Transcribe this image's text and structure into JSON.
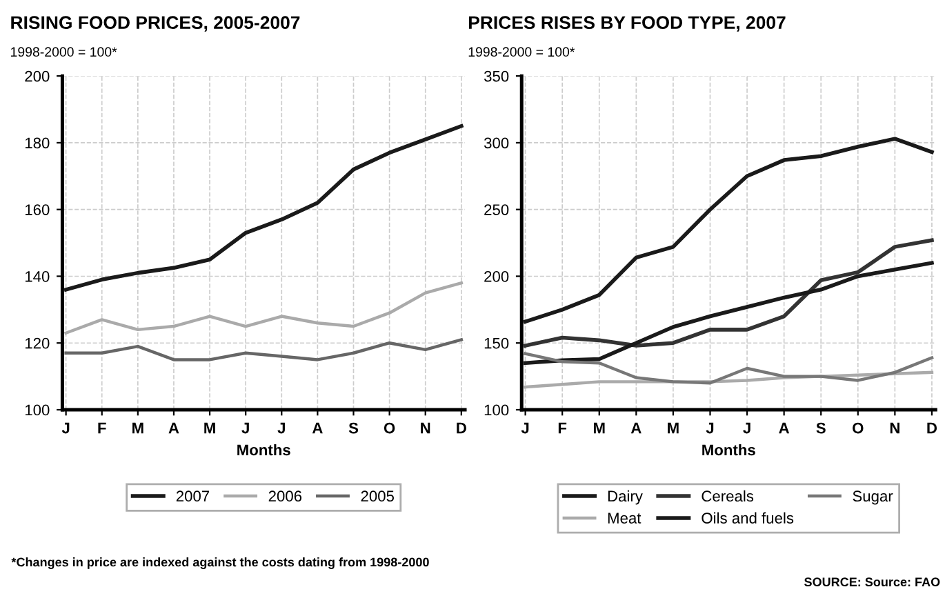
{
  "chart_data": [
    {
      "type": "line",
      "title": "RISING FOOD PRICES, 2005-2007",
      "subtitle": "1998-2000 = 100*",
      "xlabel": "Months",
      "categories": [
        "J",
        "F",
        "M",
        "A",
        "M",
        "J",
        "J",
        "A",
        "S",
        "O",
        "N",
        "D"
      ],
      "ylim": [
        100,
        200
      ],
      "yticks": [
        100,
        120,
        140,
        160,
        180,
        200
      ],
      "grid": true,
      "legend": "bottom",
      "marker": "none",
      "line_style": "solid",
      "series": [
        {
          "name": "2007",
          "color": "#1a1a1a",
          "values": [
            136,
            139,
            141,
            142.5,
            145,
            153,
            157,
            162,
            172,
            177,
            181,
            185
          ]
        },
        {
          "name": "2006",
          "color": "#aaaaaa",
          "values": [
            123,
            127,
            124,
            125,
            128,
            125,
            128,
            126,
            125,
            129,
            135,
            138
          ]
        },
        {
          "name": "2005",
          "color": "#666666",
          "values": [
            117,
            117,
            119,
            115,
            115,
            117,
            116,
            115,
            117,
            120,
            118,
            121
          ]
        }
      ],
      "annotations": [
        "*Changes in price are indexed against the costs dating from 1998-2000"
      ]
    },
    {
      "type": "line",
      "title": "PRICES RISES BY FOOD TYPE, 2007",
      "subtitle": "1998-2000 = 100*",
      "xlabel": "Months",
      "categories": [
        "J",
        "F",
        "M",
        "A",
        "M",
        "J",
        "J",
        "A",
        "S",
        "O",
        "N",
        "D"
      ],
      "ylim": [
        100,
        350
      ],
      "yticks": [
        100,
        150,
        200,
        250,
        300,
        350
      ],
      "grid": true,
      "legend": "bottom",
      "marker": "none",
      "line_style": "solid",
      "series": [
        {
          "name": "Dairy",
          "color": "#1a1a1a",
          "values": [
            166,
            175,
            186,
            214,
            222,
            250,
            275,
            287,
            290,
            297,
            303,
            293
          ]
        },
        {
          "name": "Meat",
          "color": "#aaaaaa",
          "values": [
            117,
            119,
            121,
            121,
            121,
            121,
            122,
            124,
            125,
            126,
            127,
            128
          ]
        },
        {
          "name": "Cereals",
          "color": "#333333",
          "values": [
            148,
            154,
            152,
            148,
            150,
            160,
            160,
            170,
            197,
            203,
            222,
            227
          ]
        },
        {
          "name": "Oils and fuels",
          "color": "#1a1a1a",
          "values": [
            135,
            137,
            138,
            150,
            162,
            170,
            177,
            184,
            190,
            200,
            205,
            210
          ]
        },
        {
          "name": "Sugar",
          "color": "#777777",
          "values": [
            142,
            136,
            135,
            124,
            121,
            120,
            131,
            125,
            125,
            122,
            128,
            139
          ]
        }
      ],
      "annotations": [
        "SOURCE: Source: FAO"
      ]
    }
  ]
}
